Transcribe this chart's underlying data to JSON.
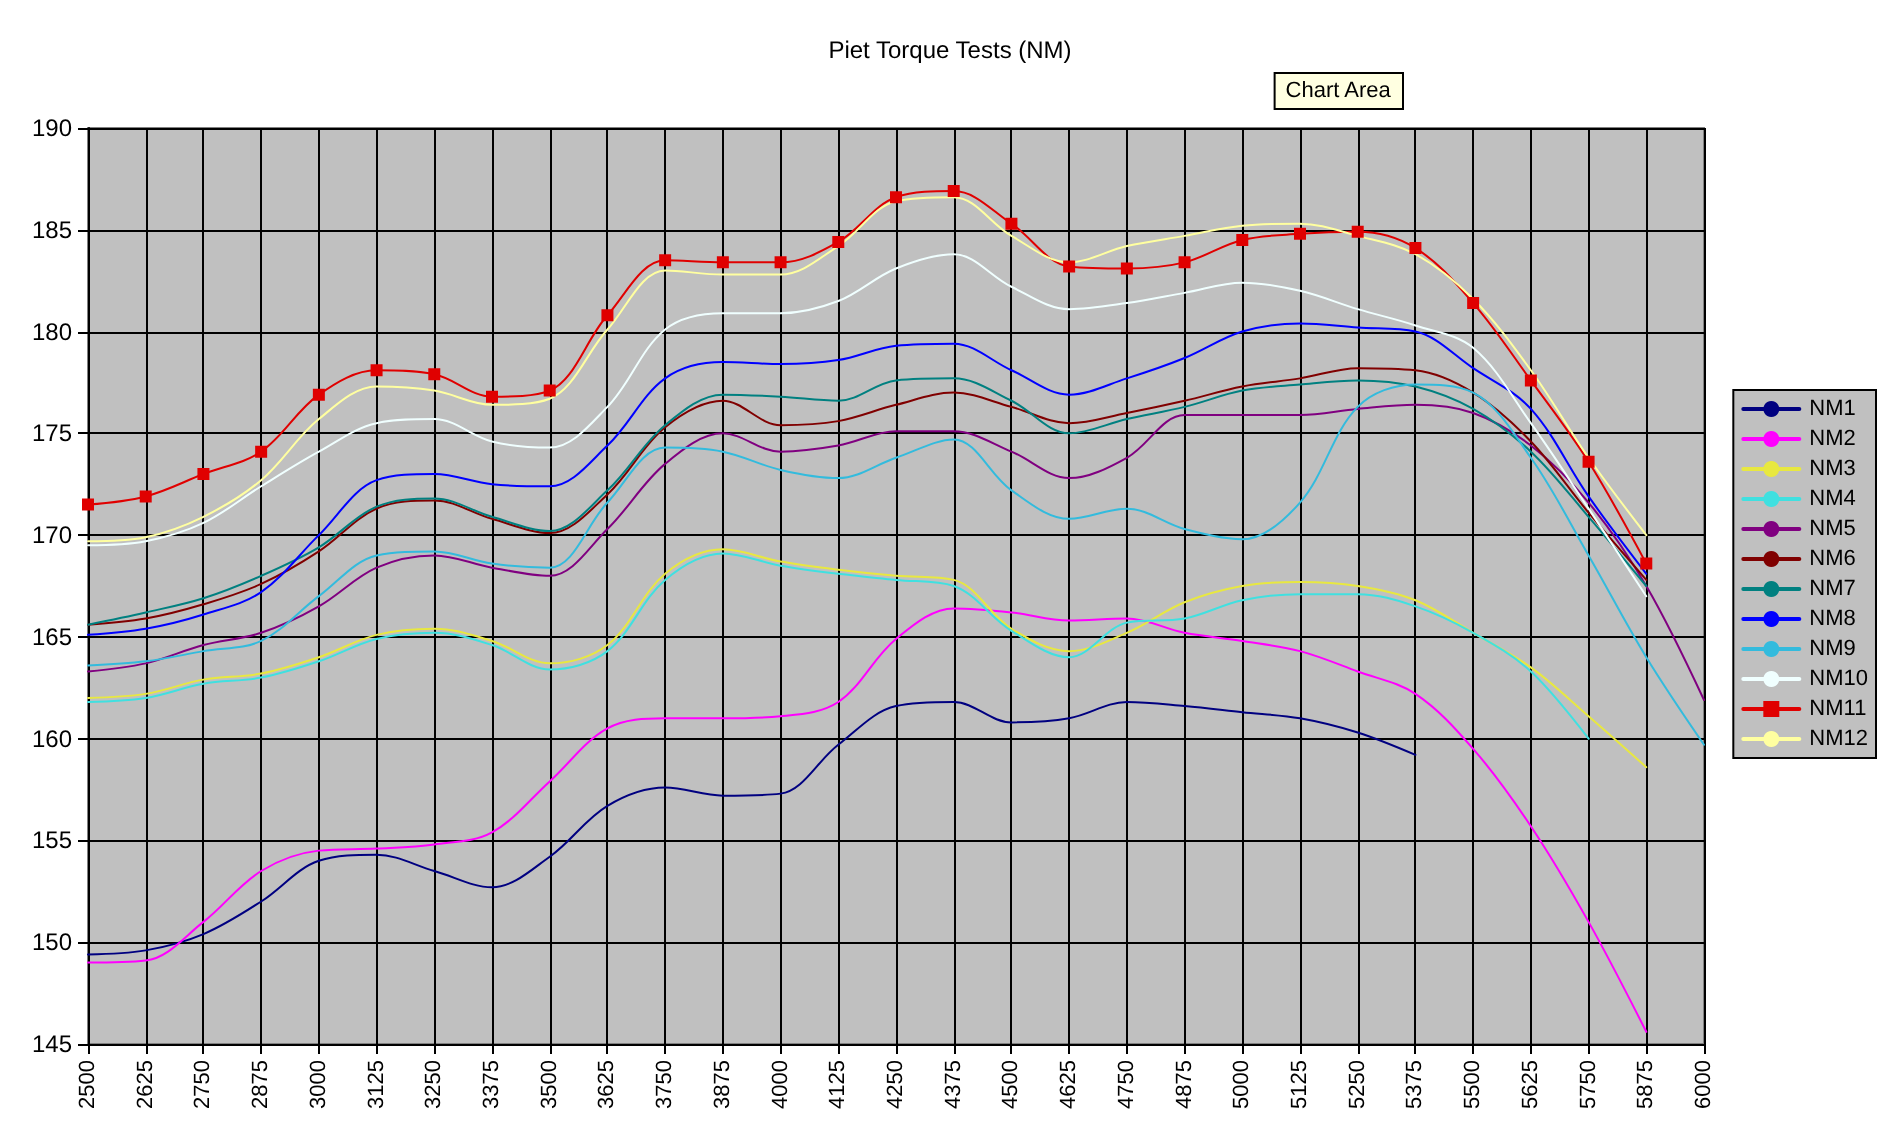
{
  "chart_data": {
    "type": "line",
    "title": "Piet Torque Tests (NM)",
    "annotations": [
      "Chart Area"
    ],
    "x": [
      2500,
      2625,
      2750,
      2875,
      3000,
      3125,
      3250,
      3375,
      3500,
      3625,
      3750,
      3875,
      4000,
      4125,
      4250,
      4375,
      4500,
      4625,
      4750,
      4875,
      5000,
      5125,
      5250,
      5375,
      5500,
      5625,
      5750,
      5875,
      6000
    ],
    "xlim": [
      2500,
      6000
    ],
    "xticks": [
      2500,
      2625,
      2750,
      2875,
      3000,
      3125,
      3250,
      3375,
      3500,
      3625,
      3750,
      3875,
      4000,
      4125,
      4250,
      4375,
      4500,
      4625,
      4750,
      4875,
      5000,
      5125,
      5250,
      5375,
      5500,
      5625,
      5750,
      5875,
      6000
    ],
    "ylim": [
      145,
      190
    ],
    "yticks": [
      145,
      150,
      155,
      160,
      165,
      170,
      175,
      180,
      185,
      190
    ],
    "grid": true,
    "legend": "right",
    "marker": "none",
    "line_style": "solid",
    "series": [
      {
        "name": "NM1",
        "color": "#000080",
        "values": [
          149.4,
          149.6,
          150.4,
          152.0,
          154.0,
          154.3,
          153.5,
          152.7,
          154.2,
          156.7,
          157.6,
          157.2,
          157.3,
          159.7,
          161.6,
          161.8,
          160.8,
          161.0,
          161.8,
          161.6,
          161.3,
          161.0,
          160.3,
          159.2,
          null,
          null,
          null,
          null,
          null
        ]
      },
      {
        "name": "NM2",
        "color": "#ff00ff",
        "values": [
          149.0,
          149.1,
          151.0,
          153.5,
          154.5,
          154.6,
          154.8,
          155.4,
          157.9,
          160.5,
          161.0,
          161.0,
          161.1,
          161.8,
          164.9,
          166.4,
          166.2,
          165.8,
          165.9,
          165.2,
          164.8,
          164.3,
          163.3,
          162.2,
          159.5,
          155.7,
          151.0,
          145.6,
          null
        ]
      },
      {
        "name": "NM3",
        "color": "#e8e840",
        "values": [
          162.0,
          162.2,
          162.9,
          163.2,
          164.0,
          165.1,
          165.4,
          164.8,
          163.7,
          164.6,
          168.1,
          169.3,
          168.7,
          168.3,
          168.0,
          167.8,
          165.4,
          164.3,
          165.2,
          166.7,
          167.5,
          167.7,
          167.5,
          166.8,
          165.2,
          163.5,
          161.1,
          158.6,
          null
        ]
      },
      {
        "name": "NM4",
        "color": "#40e0e0",
        "values": [
          161.8,
          162.0,
          162.7,
          163.0,
          163.8,
          164.9,
          165.2,
          164.6,
          163.4,
          164.3,
          167.8,
          169.1,
          168.5,
          168.1,
          167.8,
          167.5,
          165.3,
          164.0,
          165.7,
          165.9,
          166.8,
          167.1,
          167.1,
          166.5,
          165.2,
          163.3,
          160.0,
          null,
          null
        ]
      },
      {
        "name": "NM5",
        "color": "#800080",
        "values": [
          163.3,
          163.7,
          164.6,
          165.2,
          166.5,
          168.4,
          169.0,
          168.4,
          168.0,
          170.3,
          173.5,
          175.0,
          174.1,
          174.4,
          175.1,
          175.1,
          174.1,
          172.8,
          173.8,
          175.9,
          175.9,
          175.9,
          176.2,
          176.4,
          176.0,
          174.4,
          171.6,
          167.5,
          161.9
        ]
      },
      {
        "name": "NM6",
        "color": "#800000",
        "values": [
          165.6,
          165.9,
          166.6,
          167.6,
          169.2,
          171.3,
          171.7,
          170.8,
          170.1,
          172.0,
          175.3,
          176.6,
          175.4,
          175.6,
          176.4,
          177.0,
          176.3,
          175.5,
          176.0,
          176.6,
          177.3,
          177.7,
          178.2,
          178.1,
          177.0,
          174.6,
          171.1,
          167.8,
          null
        ]
      },
      {
        "name": "NM7",
        "color": "#008080",
        "values": [
          165.6,
          166.2,
          166.9,
          168.0,
          169.4,
          171.4,
          171.8,
          170.9,
          170.2,
          172.2,
          175.4,
          176.9,
          176.8,
          176.6,
          177.6,
          177.7,
          176.6,
          175.0,
          175.7,
          176.3,
          177.1,
          177.4,
          177.6,
          177.3,
          176.2,
          174.1,
          170.9,
          167.5,
          null
        ]
      },
      {
        "name": "NM8",
        "color": "#0000ff",
        "values": [
          165.1,
          165.4,
          166.1,
          167.2,
          170.0,
          172.7,
          173.0,
          172.5,
          172.4,
          174.4,
          177.7,
          178.5,
          178.4,
          178.6,
          179.3,
          179.4,
          178.1,
          176.9,
          177.7,
          178.7,
          180.0,
          180.4,
          180.2,
          180.0,
          178.2,
          176.2,
          171.9,
          168.1,
          null
        ]
      },
      {
        "name": "NM9",
        "color": "#33bbdd",
        "values": [
          163.6,
          163.8,
          164.3,
          164.8,
          167.0,
          169.0,
          169.2,
          168.6,
          168.4,
          171.6,
          174.3,
          174.1,
          173.2,
          172.8,
          173.8,
          174.7,
          172.2,
          170.8,
          171.3,
          170.3,
          169.8,
          171.6,
          176.3,
          177.4,
          177.0,
          173.8,
          169.0,
          164.0,
          159.7
        ]
      },
      {
        "name": "NM10",
        "color": "#f0ffff",
        "values": [
          169.5,
          169.7,
          170.6,
          172.4,
          174.1,
          175.5,
          175.7,
          174.6,
          174.3,
          176.3,
          180.1,
          180.9,
          180.9,
          181.5,
          183.1,
          183.8,
          182.2,
          181.1,
          181.4,
          181.9,
          182.4,
          182.0,
          181.1,
          180.3,
          179.2,
          175.5,
          171.3,
          167.0,
          null
        ]
      },
      {
        "name": "NM11",
        "color": "#e00000",
        "marker": "square",
        "values": [
          171.5,
          171.9,
          173.0,
          174.1,
          176.9,
          178.1,
          177.9,
          176.8,
          177.1,
          180.8,
          183.5,
          183.4,
          183.4,
          184.4,
          186.6,
          186.9,
          185.3,
          183.2,
          183.1,
          183.4,
          184.5,
          184.8,
          184.9,
          184.1,
          181.4,
          177.6,
          173.6,
          168.6,
          null
        ]
      },
      {
        "name": "NM12",
        "color": "#ffffa0",
        "values": [
          169.7,
          169.9,
          170.9,
          172.7,
          175.7,
          177.3,
          177.1,
          176.4,
          176.7,
          180.1,
          183.0,
          182.8,
          182.8,
          184.2,
          186.4,
          186.6,
          184.7,
          183.4,
          184.2,
          184.7,
          185.2,
          185.3,
          184.7,
          183.8,
          181.6,
          178.1,
          173.8,
          170.0,
          null
        ]
      }
    ]
  }
}
